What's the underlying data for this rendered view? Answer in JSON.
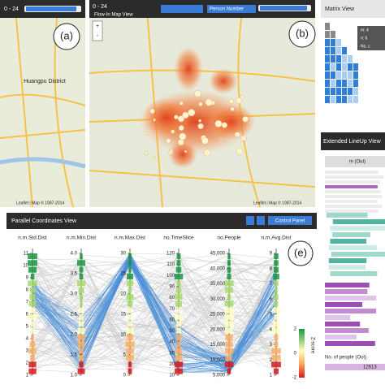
{
  "map_overview": {
    "range": "0 - 24",
    "label": "(a)",
    "district": "Huangpu District",
    "attribution": "Leaflet | Map © 1987-2014"
  },
  "flow_map": {
    "range": "0 - 24",
    "title": "Flow-In Map View",
    "dropdown": "Person Number",
    "label": "(b)",
    "zoom_in": "+",
    "zoom_out": "-",
    "attribution": "Leaflet | Map © 1987-2014"
  },
  "matrix": {
    "title": "Matrix View",
    "legend": [
      "m: 4",
      "n: 6",
      "No. c"
    ]
  },
  "lineup": {
    "title": "Extended LineUp View",
    "column": "m (Out)",
    "footer": "No. of people (Out)",
    "footer_value": "12613"
  },
  "parallel": {
    "title": "Parallel Coordinates View",
    "button": "Control Panel",
    "label": "(e)",
    "axes": [
      {
        "name": "n.m.Std.Dist",
        "ticks": [
          "1",
          "2",
          "3",
          "4",
          "5",
          "6",
          "7",
          "8",
          "9",
          "10",
          "11"
        ]
      },
      {
        "name": "n.m.Min.Dist",
        "ticks": [
          "1.0",
          "1.5",
          "2.0",
          "2.5",
          "3.0",
          "3.5",
          "4.0"
        ]
      },
      {
        "name": "n.m.Max.Dist",
        "ticks": [
          "0",
          "5",
          "10",
          "15",
          "20",
          "25",
          "30"
        ]
      },
      {
        "name": "no.TimeSlice",
        "ticks": [
          "10",
          "20",
          "30",
          "40",
          "50",
          "60",
          "70",
          "80",
          "90",
          "100",
          "110",
          "120"
        ]
      },
      {
        "name": "no.People",
        "ticks": [
          "5,000",
          "10,000",
          "15,000",
          "20,000",
          "25,000",
          "30,000",
          "35,000",
          "40,000",
          "45,000"
        ]
      },
      {
        "name": "n.m.Avg.Dist",
        "ticks": [
          "1",
          "2",
          "3",
          "4",
          "5",
          "6",
          "7",
          "8",
          "9"
        ]
      }
    ],
    "colorbar": {
      "title": "Z-score",
      "ticks": [
        "-2",
        "0",
        "2"
      ]
    }
  }
}
